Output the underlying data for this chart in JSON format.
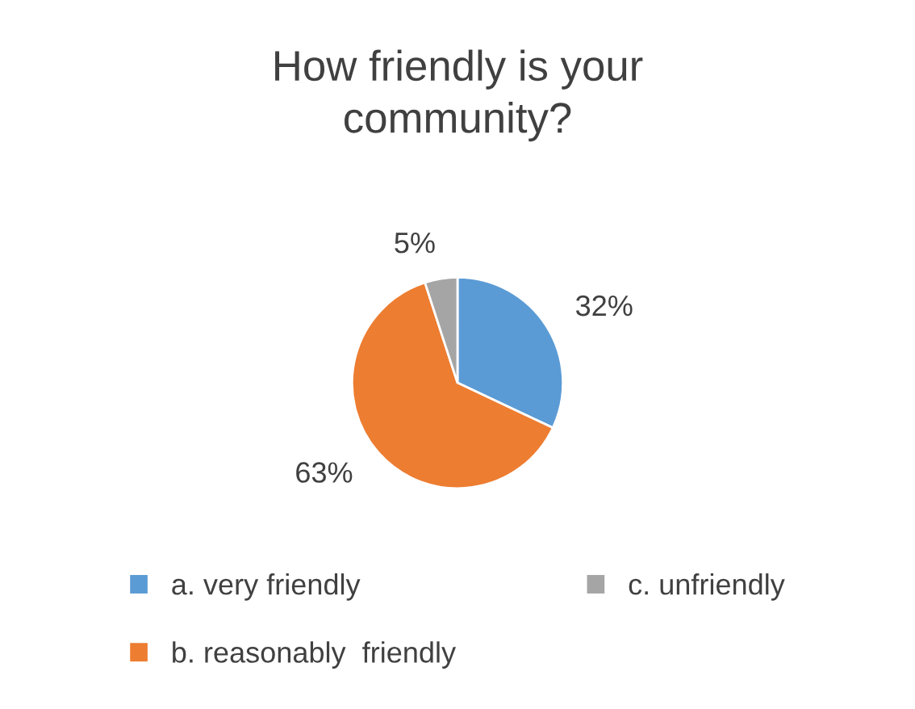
{
  "chart_data": {
    "type": "pie",
    "title": "How friendly is your\ncommunity?",
    "categories": [
      "a. very friendly",
      "b. reasonably  friendly",
      "c. unfriendly"
    ],
    "values": [
      32,
      63,
      5
    ],
    "value_labels": [
      "32%",
      "63%",
      "5%"
    ],
    "colors": [
      "#5b9bd5",
      "#ed7d31",
      "#a5a5a5"
    ],
    "legend": "bottom"
  }
}
